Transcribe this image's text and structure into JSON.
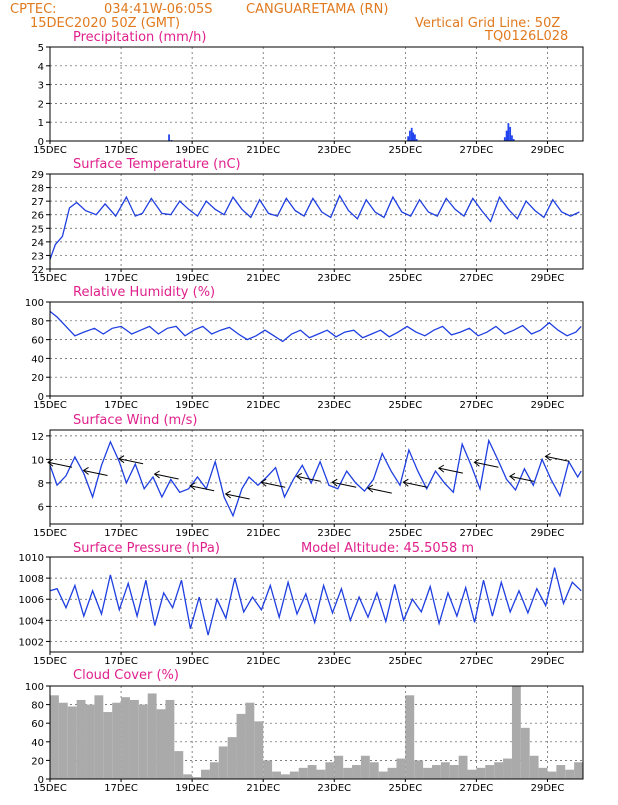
{
  "header": {
    "source": "CPTEC:",
    "location": "034:41W-06:05S",
    "city": "CANGUARETAMA (RN)",
    "run": "15DEC2020 50Z (GMT)",
    "grid_note": "Vertical Grid Line: 50Z",
    "code": "TQ0126L028",
    "model_altitude": "Model Altitude: 45.5058 m"
  },
  "x_ticks": [
    "15DEC",
    "17DEC",
    "19DEC",
    "21DEC",
    "23DEC",
    "25DEC",
    "27DEC",
    "29DEC"
  ],
  "colors": {
    "line": "#1f3fe0",
    "bar": "#2244ee",
    "cloud": "#aaaaaa",
    "header": "#e07a1f",
    "title": "#e0208c",
    "arrow": "#000000"
  },
  "chart_data": [
    {
      "id": "precipitation",
      "type": "bar",
      "title": "Precipitation (mm/h)",
      "ylim": [
        0,
        5
      ],
      "yticks": [
        "5",
        "4",
        "3",
        "2",
        "1",
        "0"
      ],
      "x_days": [
        3.35,
        3.42,
        10.08,
        10.13,
        10.18,
        10.22,
        10.27,
        10.32,
        12.8,
        12.85,
        12.9,
        12.95,
        13.0,
        13.05
      ],
      "values": [
        0.35,
        0.05,
        0.25,
        0.55,
        0.7,
        0.45,
        0.35,
        0.1,
        0.2,
        0.55,
        0.95,
        0.75,
        0.3,
        0.1
      ]
    },
    {
      "id": "temperature",
      "type": "line",
      "title": "Surface Temperature (nC)",
      "ylim": [
        22,
        29
      ],
      "yticks": [
        "29",
        "28",
        "27",
        "26",
        "25",
        "24",
        "23",
        "22"
      ],
      "x_days": [
        0,
        0.15,
        0.35,
        0.55,
        0.75,
        1.0,
        1.3,
        1.55,
        1.85,
        2.15,
        2.4,
        2.6,
        2.85,
        3.15,
        3.4,
        3.65,
        3.9,
        4.15,
        4.4,
        4.65,
        4.9,
        5.15,
        5.4,
        5.65,
        5.9,
        6.15,
        6.4,
        6.65,
        6.9,
        7.15,
        7.4,
        7.65,
        7.9,
        8.15,
        8.4,
        8.65,
        8.9,
        9.15,
        9.4,
        9.65,
        9.9,
        10.15,
        10.4,
        10.65,
        10.9,
        11.15,
        11.4,
        11.65,
        11.9,
        12.15,
        12.4,
        12.65,
        12.9,
        13.15,
        13.4,
        13.65,
        13.9,
        14.15,
        14.4,
        14.65,
        14.9
      ],
      "values": [
        22.7,
        23.8,
        24.4,
        26.5,
        26.9,
        26.3,
        26.0,
        26.8,
        25.9,
        27.3,
        25.9,
        26.1,
        27.2,
        26.1,
        26.0,
        27.0,
        26.4,
        25.9,
        27.0,
        26.4,
        26.0,
        27.3,
        26.4,
        25.8,
        27.1,
        26.1,
        25.9,
        27.2,
        26.3,
        25.9,
        27.2,
        26.2,
        25.8,
        27.4,
        26.3,
        25.7,
        27.1,
        26.2,
        25.8,
        27.3,
        26.2,
        25.9,
        27.1,
        26.2,
        25.9,
        27.2,
        26.4,
        25.9,
        27.2,
        26.3,
        25.5,
        27.3,
        26.4,
        25.7,
        27.0,
        26.3,
        25.8,
        27.1,
        26.2,
        25.9,
        26.2
      ]
    },
    {
      "id": "humidity",
      "type": "line",
      "title": "Relative Humidity (%)",
      "ylim": [
        0,
        100
      ],
      "yticks": [
        "100",
        "80",
        "60",
        "40",
        "20",
        "0"
      ],
      "x_days": [
        0,
        0.2,
        0.45,
        0.7,
        0.95,
        1.25,
        1.5,
        1.75,
        2.0,
        2.3,
        2.55,
        2.8,
        3.05,
        3.3,
        3.55,
        3.8,
        4.05,
        4.3,
        4.55,
        4.8,
        5.05,
        5.3,
        5.55,
        5.8,
        6.05,
        6.3,
        6.55,
        6.8,
        7.05,
        7.3,
        7.55,
        7.8,
        8.05,
        8.3,
        8.55,
        8.8,
        9.05,
        9.3,
        9.55,
        9.8,
        10.05,
        10.3,
        10.55,
        10.8,
        11.05,
        11.3,
        11.55,
        11.8,
        12.05,
        12.3,
        12.55,
        12.8,
        13.05,
        13.3,
        13.55,
        13.8,
        14.05,
        14.3,
        14.55,
        14.8,
        14.95
      ],
      "values": [
        90,
        84,
        74,
        64,
        68,
        72,
        66,
        72,
        74,
        66,
        70,
        74,
        66,
        72,
        74,
        64,
        70,
        74,
        66,
        70,
        73,
        66,
        60,
        64,
        70,
        64,
        58,
        66,
        70,
        62,
        66,
        70,
        63,
        68,
        70,
        62,
        66,
        70,
        63,
        68,
        74,
        68,
        64,
        70,
        74,
        65,
        68,
        72,
        64,
        68,
        74,
        66,
        70,
        75,
        66,
        70,
        78,
        70,
        64,
        68,
        74
      ]
    },
    {
      "id": "wind",
      "type": "line",
      "title": "Surface Wind (m/s)",
      "ylim": [
        4.5,
        12.5
      ],
      "yticks": [
        "12",
        "10",
        "8",
        "6"
      ],
      "x_days": [
        0,
        0.2,
        0.45,
        0.7,
        0.95,
        1.2,
        1.45,
        1.7,
        1.95,
        2.15,
        2.4,
        2.65,
        2.9,
        3.15,
        3.4,
        3.65,
        3.9,
        4.15,
        4.4,
        4.65,
        4.9,
        5.15,
        5.4,
        5.6,
        5.85,
        6.1,
        6.35,
        6.6,
        6.85,
        7.1,
        7.35,
        7.6,
        7.85,
        8.1,
        8.35,
        8.6,
        8.85,
        9.1,
        9.35,
        9.6,
        9.85,
        10.1,
        10.35,
        10.6,
        10.85,
        11.1,
        11.35,
        11.6,
        11.85,
        12.1,
        12.35,
        12.6,
        12.85,
        13.1,
        13.35,
        13.6,
        13.85,
        14.1,
        14.35,
        14.6,
        14.85,
        14.95
      ],
      "values": [
        9.5,
        7.8,
        8.6,
        10.2,
        8.8,
        6.8,
        9.5,
        11.5,
        9.8,
        8.0,
        9.6,
        7.5,
        8.5,
        6.8,
        8.3,
        7.2,
        7.5,
        8.5,
        7.5,
        9.8,
        6.8,
        5.2,
        7.5,
        8.5,
        7.8,
        8.5,
        9.3,
        6.8,
        8.3,
        9.5,
        8.0,
        9.8,
        7.8,
        7.5,
        9.0,
        8.0,
        7.3,
        8.3,
        10.5,
        9.0,
        7.8,
        10.8,
        9.0,
        7.5,
        9.0,
        8.0,
        7.2,
        11.3,
        9.5,
        7.5,
        11.6,
        10.0,
        8.3,
        7.4,
        9.2,
        7.8,
        10.0,
        8.3,
        6.9,
        9.8,
        8.5,
        9.0
      ],
      "arrow_note": "black wind-direction arrows (easterly, pointing west)"
    },
    {
      "id": "pressure",
      "type": "line",
      "title": "Surface Pressure (hPa)",
      "ylim": [
        1001,
        1010
      ],
      "yticks": [
        "1010",
        "1008",
        "1006",
        "1004",
        "1002"
      ],
      "x_days": [
        0,
        0.2,
        0.45,
        0.7,
        0.95,
        1.2,
        1.45,
        1.7,
        1.95,
        2.2,
        2.45,
        2.7,
        2.95,
        3.2,
        3.45,
        3.7,
        3.95,
        4.2,
        4.45,
        4.7,
        4.95,
        5.2,
        5.45,
        5.7,
        5.95,
        6.2,
        6.45,
        6.7,
        6.95,
        7.2,
        7.45,
        7.7,
        7.95,
        8.2,
        8.45,
        8.7,
        8.95,
        9.2,
        9.45,
        9.7,
        9.95,
        10.2,
        10.45,
        10.7,
        10.95,
        11.2,
        11.45,
        11.7,
        11.95,
        12.2,
        12.45,
        12.7,
        12.95,
        13.2,
        13.45,
        13.7,
        13.95,
        14.2,
        14.45,
        14.7,
        14.95
      ],
      "values": [
        1006.8,
        1007.0,
        1005.2,
        1007.3,
        1004.4,
        1006.8,
        1004.6,
        1008.3,
        1005.0,
        1007.5,
        1004.4,
        1007.8,
        1003.5,
        1006.6,
        1005.2,
        1007.8,
        1003.2,
        1006.2,
        1002.6,
        1006.0,
        1004.2,
        1008.0,
        1004.8,
        1006.2,
        1005.0,
        1007.3,
        1004.3,
        1007.6,
        1004.6,
        1006.5,
        1003.8,
        1007.3,
        1004.7,
        1007.0,
        1004.0,
        1006.2,
        1004.3,
        1006.6,
        1003.9,
        1007.4,
        1004.0,
        1006.0,
        1004.8,
        1007.2,
        1003.7,
        1006.6,
        1004.4,
        1007.1,
        1003.8,
        1007.8,
        1004.4,
        1007.6,
        1004.8,
        1006.8,
        1004.7,
        1007.0,
        1005.4,
        1009.0,
        1005.6,
        1007.6,
        1006.8
      ]
    },
    {
      "id": "cloud",
      "type": "bar",
      "title": "Cloud Cover (%)",
      "ylim": [
        0,
        100
      ],
      "yticks": [
        "100",
        "80",
        "60",
        "40",
        "20",
        "0"
      ],
      "x_days": [
        0,
        0.25,
        0.5,
        0.75,
        1.0,
        1.25,
        1.5,
        1.75,
        2.0,
        2.25,
        2.5,
        2.75,
        3.0,
        3.25,
        3.5,
        3.75,
        4.0,
        4.25,
        4.5,
        4.75,
        5.0,
        5.25,
        5.5,
        5.75,
        6.0,
        6.25,
        6.5,
        6.75,
        7.0,
        7.25,
        7.5,
        7.75,
        8.0,
        8.25,
        8.5,
        8.75,
        9.0,
        9.25,
        9.5,
        9.75,
        10.0,
        10.25,
        10.5,
        10.75,
        11.0,
        11.25,
        11.5,
        11.75,
        12.0,
        12.25,
        12.5,
        12.75,
        13.0,
        13.25,
        13.5,
        13.75,
        14.0,
        14.25,
        14.5,
        14.75
      ],
      "values": [
        90,
        82,
        78,
        85,
        80,
        90,
        72,
        82,
        88,
        85,
        80,
        92,
        75,
        85,
        30,
        5,
        2,
        10,
        18,
        35,
        45,
        70,
        82,
        62,
        20,
        8,
        5,
        8,
        12,
        15,
        10,
        18,
        25,
        12,
        15,
        25,
        18,
        8,
        12,
        22,
        90,
        20,
        12,
        15,
        18,
        15,
        25,
        10,
        12,
        15,
        18,
        22,
        100,
        55,
        25,
        12,
        8,
        15,
        10,
        18
      ]
    }
  ]
}
